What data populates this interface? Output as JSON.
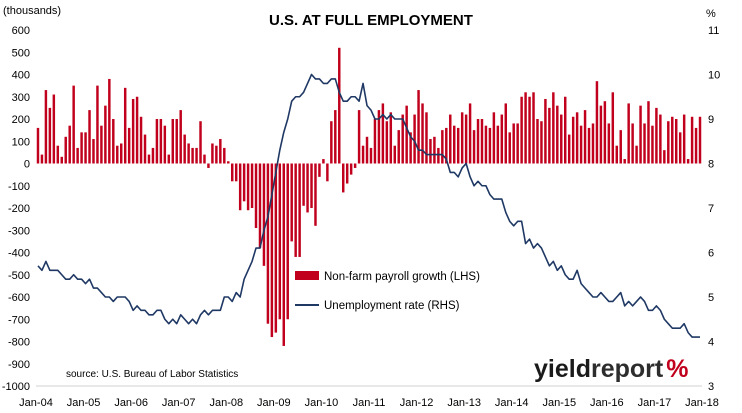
{
  "chart_data": {
    "type": "bar",
    "title": "U.S. AT FULL EMPLOYMENT",
    "left_axis": {
      "unit": "(thousands)",
      "ylim": [
        -1000,
        600
      ],
      "ticks": [
        600,
        500,
        400,
        300,
        200,
        100,
        0,
        -100,
        -200,
        -300,
        -400,
        -500,
        -600,
        -700,
        -800,
        -900,
        -1000
      ]
    },
    "right_axis": {
      "unit": "%",
      "ylim": [
        3,
        11
      ],
      "ticks": [
        11,
        10,
        9,
        8,
        7,
        6,
        5,
        4,
        3
      ]
    },
    "x_axis": {
      "start": "Jan-04",
      "end": "Jan-18",
      "ticks": [
        "Jan-04",
        "Jan-05",
        "Jan-06",
        "Jan-07",
        "Jan-08",
        "Jan-09",
        "Jan-10",
        "Jan-11",
        "Jan-12",
        "Jan-13",
        "Jan-14",
        "Jan-15",
        "Jan-16",
        "Jan-17",
        "Jan-18"
      ]
    },
    "grid": false,
    "legend_position": "center-left",
    "series": [
      {
        "name": "Non-farm payroll growth (LHS)",
        "axis": "left",
        "style": "bar",
        "color": "#c0001c",
        "values": [
          160,
          40,
          330,
          250,
          310,
          80,
          30,
          120,
          170,
          350,
          70,
          140,
          140,
          240,
          110,
          350,
          170,
          260,
          380,
          200,
          80,
          90,
          340,
          160,
          290,
          300,
          210,
          130,
          40,
          70,
          200,
          200,
          170,
          40,
          200,
          200,
          240,
          130,
          90,
          70,
          70,
          190,
          40,
          -20,
          90,
          80,
          110,
          70,
          10,
          -80,
          -80,
          -210,
          -170,
          -210,
          -200,
          -290,
          -380,
          -460,
          -720,
          -780,
          -760,
          -700,
          -820,
          -700,
          -350,
          -420,
          -420,
          -190,
          -220,
          -200,
          -280,
          -60,
          20,
          -80,
          190,
          240,
          520,
          -130,
          -90,
          -50,
          -20,
          240,
          80,
          120,
          70,
          200,
          240,
          270,
          190,
          230,
          80,
          150,
          220,
          260,
          140,
          220,
          330,
          270,
          230,
          110,
          120,
          70,
          150,
          160,
          220,
          170,
          160,
          230,
          220,
          270,
          150,
          200,
          200,
          170,
          160,
          230,
          170,
          220,
          270,
          140,
          180,
          180,
          300,
          320,
          300,
          320,
          200,
          190,
          290,
          250,
          320,
          260,
          220,
          300,
          130,
          210,
          230,
          170,
          240,
          160,
          180,
          370,
          260,
          280,
          180,
          320,
          80,
          150,
          20,
          270,
          180,
          80,
          260,
          180,
          280,
          170,
          250,
          220,
          60,
          190,
          210,
          200,
          140,
          220,
          20,
          210,
          160,
          210
        ]
      },
      {
        "name": "Unemployment rate (RHS)",
        "axis": "right",
        "style": "line",
        "color": "#1f3864",
        "values": [
          5.7,
          5.6,
          5.8,
          5.6,
          5.6,
          5.6,
          5.5,
          5.4,
          5.4,
          5.5,
          5.4,
          5.4,
          5.3,
          5.4,
          5.2,
          5.2,
          5.1,
          5.0,
          5.0,
          4.9,
          5.0,
          5.0,
          5.0,
          4.9,
          4.7,
          4.8,
          4.7,
          4.7,
          4.6,
          4.6,
          4.7,
          4.7,
          4.5,
          4.4,
          4.5,
          4.4,
          4.6,
          4.5,
          4.4,
          4.5,
          4.4,
          4.6,
          4.7,
          4.6,
          4.7,
          4.7,
          4.7,
          5.0,
          5.0,
          4.9,
          5.1,
          5.0,
          5.4,
          5.6,
          5.8,
          6.1,
          6.1,
          6.5,
          6.8,
          7.3,
          7.8,
          8.3,
          8.7,
          9.0,
          9.4,
          9.5,
          9.5,
          9.6,
          9.8,
          10.0,
          9.9,
          9.9,
          9.8,
          9.8,
          9.9,
          9.9,
          9.6,
          9.4,
          9.4,
          9.5,
          9.5,
          9.4,
          9.8,
          9.3,
          9.2,
          9.0,
          9.0,
          9.1,
          9.0,
          9.1,
          9.0,
          9.0,
          9.0,
          8.8,
          8.6,
          8.5,
          8.3,
          8.3,
          8.2,
          8.2,
          8.2,
          8.2,
          8.2,
          8.1,
          7.8,
          7.8,
          7.7,
          7.9,
          8.0,
          7.7,
          7.5,
          7.6,
          7.5,
          7.5,
          7.3,
          7.2,
          7.2,
          7.2,
          6.9,
          6.7,
          6.6,
          6.7,
          6.7,
          6.2,
          6.3,
          6.1,
          6.2,
          6.1,
          5.9,
          5.7,
          5.8,
          5.6,
          5.7,
          5.5,
          5.4,
          5.4,
          5.6,
          5.3,
          5.2,
          5.1,
          5.0,
          5.0,
          5.1,
          5.0,
          4.9,
          4.9,
          5.0,
          5.1,
          4.8,
          4.9,
          4.8,
          4.9,
          5.0,
          4.9,
          4.7,
          4.7,
          4.8,
          4.7,
          4.5,
          4.4,
          4.3,
          4.3,
          4.3,
          4.4,
          4.2,
          4.1,
          4.1,
          4.1
        ]
      }
    ],
    "annotations": [
      "source: U.S. Bureau of Labor Statistics"
    ]
  },
  "brand": {
    "yield": "yield",
    "report": "report",
    "percent": "%"
  }
}
